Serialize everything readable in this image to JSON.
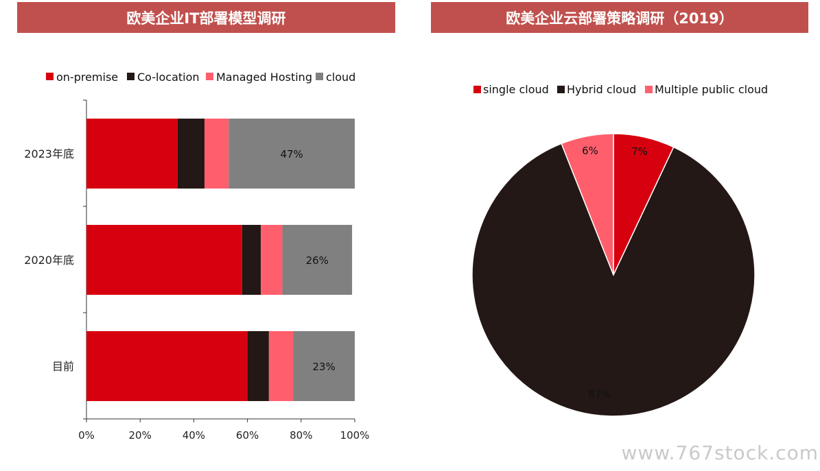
{
  "titles": {
    "left": "欧美企业IT部署模型调研",
    "right": "欧美企业云部署策略调研（2019）"
  },
  "watermark": "www.767stock.com",
  "colors": {
    "title_bar": "#c0504d",
    "on_premise": "#d7000f",
    "co_location": "#231815",
    "managed_hosting": "#ff5f6d",
    "cloud": "#808080"
  },
  "chart_data": [
    {
      "type": "bar",
      "orientation": "horizontal",
      "stacked": true,
      "categories": [
        "2023年底",
        "2020年底",
        "目前"
      ],
      "series": [
        {
          "name": "on-premise",
          "color": "#d7000f",
          "values": [
            34,
            58,
            60
          ]
        },
        {
          "name": "Co-location",
          "color": "#231815",
          "values": [
            10,
            7,
            8
          ]
        },
        {
          "name": "Managed Hosting",
          "color": "#ff5f6d",
          "values": [
            9,
            8,
            9
          ]
        },
        {
          "name": "cloud",
          "color": "#808080",
          "values": [
            47,
            26,
            23
          ]
        }
      ],
      "data_labels": {
        "series": "cloud",
        "labels": [
          "47%",
          "26%",
          "23%"
        ]
      },
      "xlim": [
        0,
        100
      ],
      "xticks": [
        "0%",
        "20%",
        "40%",
        "60%",
        "80%",
        "100%"
      ],
      "legend": "top"
    },
    {
      "type": "pie",
      "labels": [
        "single cloud",
        "Hybrid cloud",
        "Multiple public cloud"
      ],
      "values": [
        7,
        87,
        6
      ],
      "value_labels": [
        "7%",
        "87%",
        "6%"
      ],
      "colors": [
        "#d7000f",
        "#231815",
        "#ff5f6d"
      ],
      "legend": "top"
    }
  ]
}
